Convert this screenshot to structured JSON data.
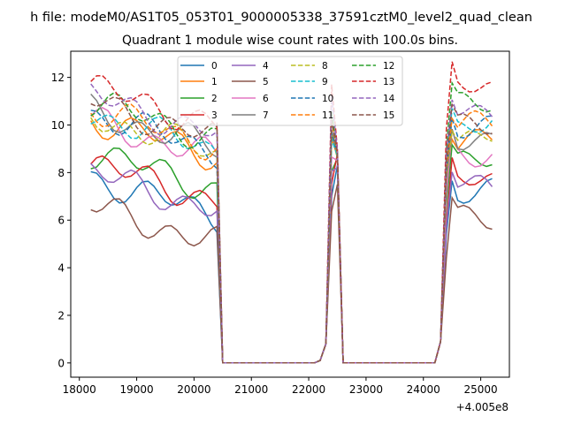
{
  "chart_data": {
    "type": "line",
    "suptitle": "h file: modeM0/AS1T05_053T01_9000005338_37591cztM0_level2_quad_clean",
    "title": "Quadrant 1 module wise count rates with 100.0s bins.",
    "xlabel": "",
    "ylabel": "",
    "x_offset_label": "+4.005e8",
    "xlim": [
      17850,
      25500
    ],
    "ylim": [
      -0.6,
      13.1
    ],
    "xticks": [
      18000,
      19000,
      20000,
      21000,
      22000,
      23000,
      24000,
      25000
    ],
    "xtick_labels": [
      "18000",
      "19000",
      "20000",
      "21000",
      "22000",
      "23000",
      "24000",
      "25000"
    ],
    "yticks": [
      0,
      2,
      4,
      6,
      8,
      10,
      12
    ],
    "ytick_labels": [
      "0",
      "2",
      "4",
      "6",
      "8",
      "10",
      "12"
    ],
    "grid": false,
    "legend": {
      "placement": "top-center",
      "columns": 4
    },
    "series": [
      {
        "name": "0",
        "color": "#1f77b4",
        "dash": "solid",
        "base": 6.8,
        "peak": 8.3,
        "post": 7.2
      },
      {
        "name": "1",
        "color": "#ff7f0e",
        "dash": "solid",
        "base": 9.3,
        "peak": 8.7,
        "post": 9.3
      },
      {
        "name": "2",
        "color": "#2ca02c",
        "dash": "solid",
        "base": 7.9,
        "peak": 8.6,
        "post": 8.4
      },
      {
        "name": "3",
        "color": "#d62728",
        "dash": "solid",
        "base": 7.4,
        "peak": 8.8,
        "post": 7.6
      },
      {
        "name": "4",
        "color": "#9467bd",
        "dash": "solid",
        "base": 7.0,
        "peak": 8.2,
        "post": 7.5
      },
      {
        "name": "5",
        "color": "#8c564b",
        "dash": "solid",
        "base": 5.6,
        "peak": 7.5,
        "post": 6.2
      },
      {
        "name": "6",
        "color": "#e377c2",
        "dash": "solid",
        "base": 9.2,
        "peak": 8.5,
        "post": 8.8
      },
      {
        "name": "7",
        "color": "#7f7f7f",
        "dash": "solid",
        "base": 9.6,
        "peak": 8.6,
        "post": 9.5
      },
      {
        "name": "8",
        "color": "#bcbd22",
        "dash": "dashed",
        "base": 9.4,
        "peak": 8.6,
        "post": 9.6
      },
      {
        "name": "9",
        "color": "#17becf",
        "dash": "dashed",
        "base": 9.5,
        "peak": 8.7,
        "post": 10.0
      },
      {
        "name": "10",
        "color": "#1f77b4",
        "dash": "dashed",
        "base": 9.5,
        "peak": 8.8,
        "post": 9.8
      },
      {
        "name": "11",
        "color": "#ff7f0e",
        "dash": "dashed",
        "base": 9.7,
        "peak": 8.7,
        "post": 10.0
      },
      {
        "name": "12",
        "color": "#2ca02c",
        "dash": "dashed",
        "base": 10.0,
        "peak": 8.8,
        "post": 10.8
      },
      {
        "name": "13",
        "color": "#d62728",
        "dash": "dashed",
        "base": 10.6,
        "peak": 9.0,
        "post": 11.6
      },
      {
        "name": "14",
        "color": "#9467bd",
        "dash": "dashed",
        "base": 10.2,
        "peak": 8.9,
        "post": 10.6
      },
      {
        "name": "15",
        "color": "#8c564b",
        "dash": "dashed",
        "base": 10.0,
        "peak": 8.8,
        "post": 10.2
      }
    ],
    "segments": {
      "x_start": 18200,
      "x_step": 100,
      "first_on_end": 20400,
      "first_gap_end": 22200,
      "spike_x": 22500,
      "second_gap_start": 22600,
      "second_on_start": 24300,
      "x_end": 25200
    }
  }
}
